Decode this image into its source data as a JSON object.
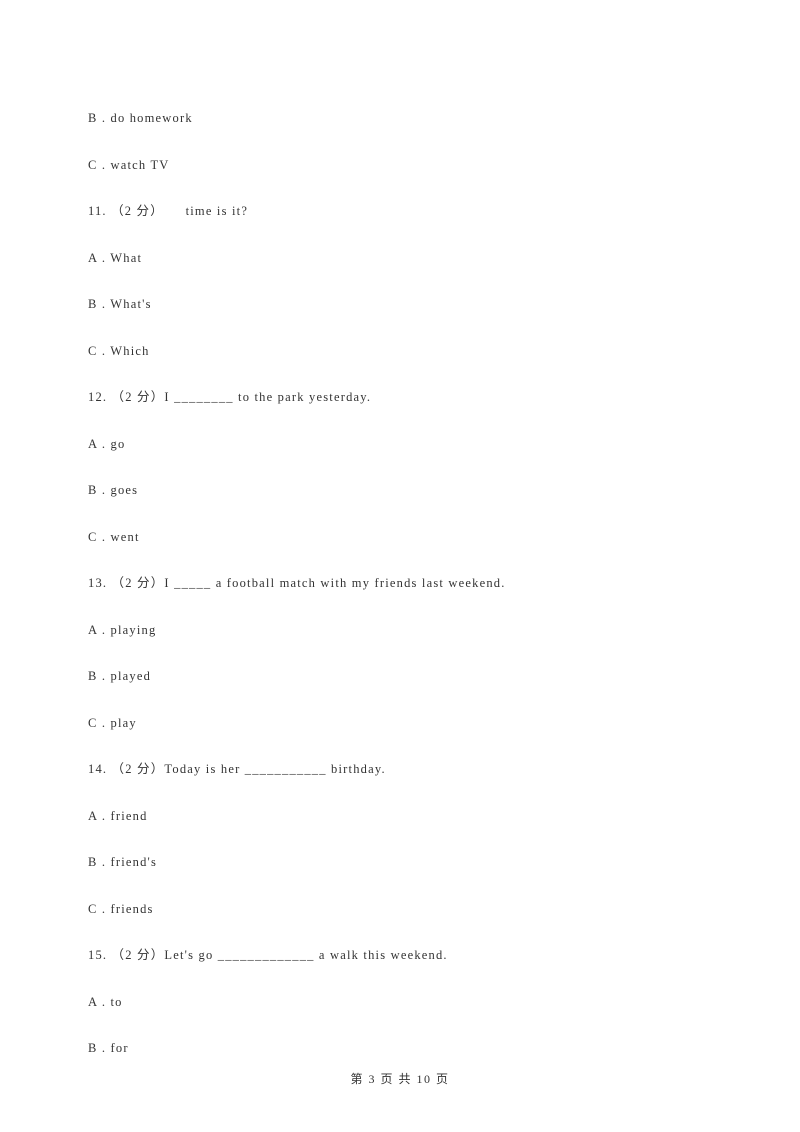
{
  "lines": [
    "B . do homework",
    "C . watch TV",
    "11. （2 分）     time is it?",
    "A . What",
    "B . What's",
    "C . Which",
    "12. （2 分）I ________ to the park yesterday.",
    "A . go",
    "B . goes",
    "C . went",
    "13. （2 分）I _____ a football match with my friends last weekend.",
    "A . playing",
    "B . played",
    "C . play",
    "14. （2 分）Today is her ___________ birthday.",
    "A . friend",
    "B . friend's",
    "C . friends",
    "15. （2 分）Let's go _____________ a walk this weekend.",
    "A . to",
    "B . for"
  ],
  "footer": {
    "text": "第 3 页 共 10 页"
  }
}
